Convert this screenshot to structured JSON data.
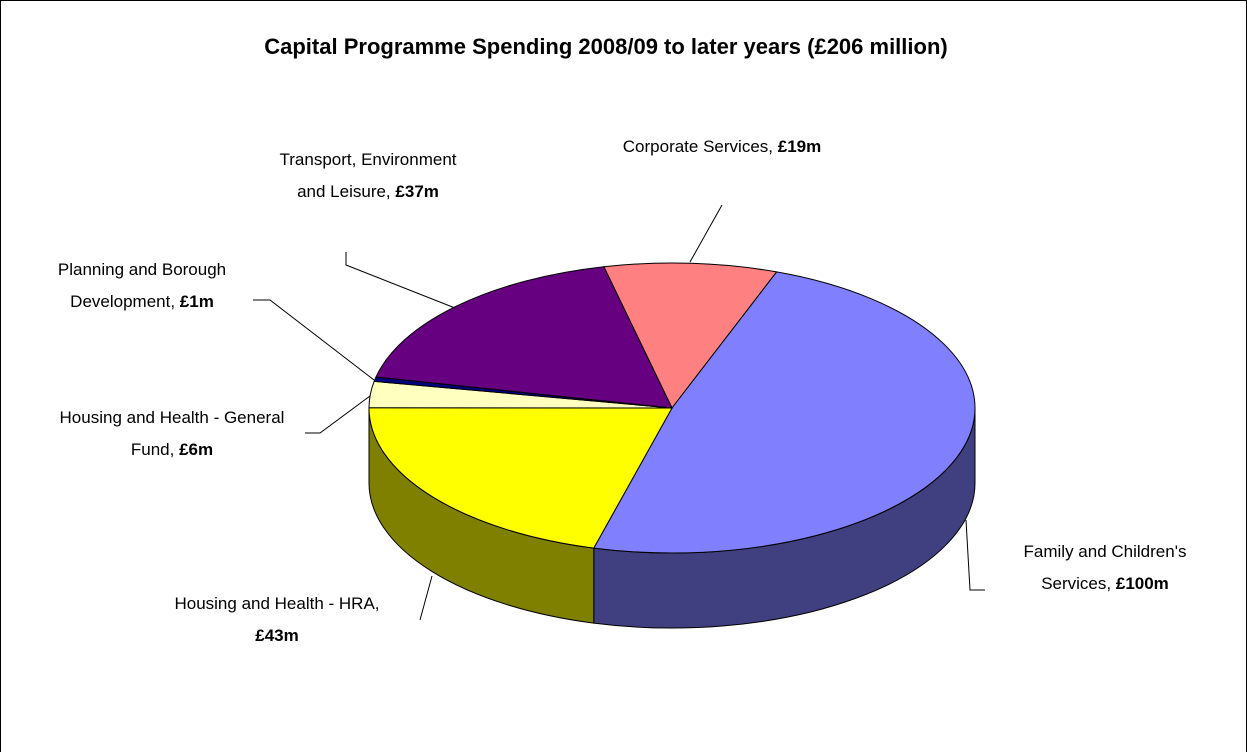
{
  "chart_data": {
    "type": "pie",
    "title": "Capital Programme Spending 2008/09 to later years (£206 million)",
    "categories": [
      "Corporate Services,",
      "Family and Children's Services,",
      "Housing and Health - HRA,",
      "Housing and Health - General Fund,",
      "Planning and Borough Development,",
      "Transport, Environment and Leisure,"
    ],
    "values": [
      19,
      100,
      43,
      6,
      1,
      37
    ],
    "value_labels": [
      "£19m",
      "£100m",
      "£43m",
      "£6m",
      "£1m",
      "£37m"
    ],
    "colors": [
      "#ff8080",
      "#8080ff",
      "#ffff00",
      "#ffffc0",
      "#000080",
      "#660080"
    ]
  }
}
